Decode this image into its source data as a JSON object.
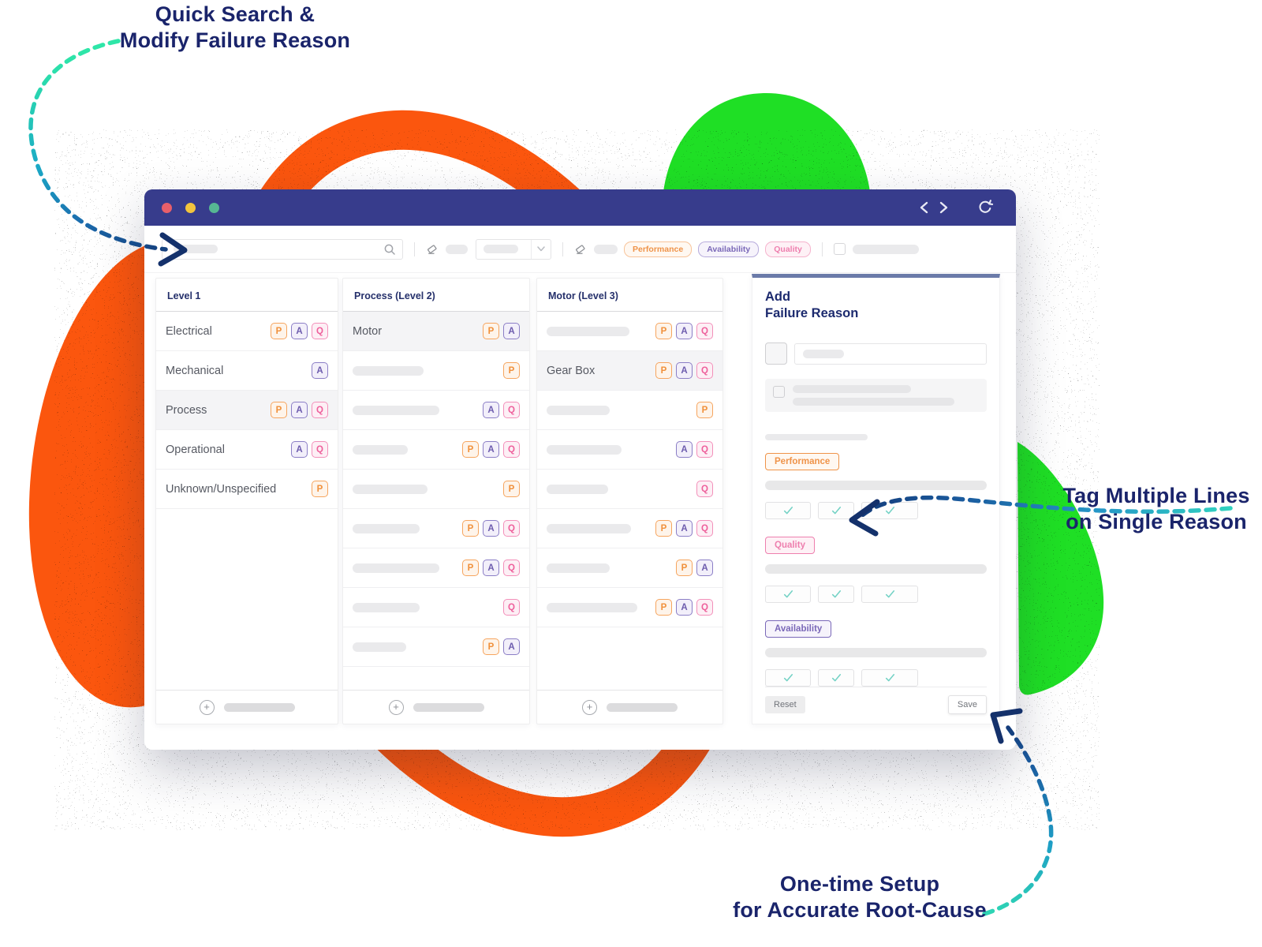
{
  "annotations": {
    "top_left": {
      "line1": "Quick Search &",
      "line2": "Modify Failure Reason"
    },
    "right": {
      "line1": "Tag Multiple Lines",
      "line2": "on Single Reason"
    },
    "bottom": {
      "line1": "One-time Setup",
      "line2": "for Accurate Root-Cause"
    }
  },
  "window": {
    "titlebar": {
      "traffic_lights": [
        "close",
        "minimize",
        "zoom"
      ],
      "nav_icons": [
        "back",
        "forward",
        "refresh"
      ]
    },
    "toolbar": {
      "search": {
        "placeholder": ""
      },
      "filter_tags": [
        {
          "label": "Performance",
          "color": "orange"
        },
        {
          "label": "Availability",
          "color": "purple"
        },
        {
          "label": "Quality",
          "color": "pink"
        }
      ]
    },
    "columns": [
      {
        "header": "Level 1",
        "rows": [
          {
            "label": "Electrical",
            "badges": [
              "P",
              "A",
              "Q"
            ]
          },
          {
            "label": "Mechanical",
            "badges": [
              "A"
            ]
          },
          {
            "label": "Process",
            "badges": [
              "P",
              "A",
              "Q"
            ],
            "selected": true
          },
          {
            "label": "Operational",
            "badges": [
              "A",
              "Q"
            ]
          },
          {
            "label": "Unknown/Unspecified",
            "badges": [
              "P"
            ]
          }
        ]
      },
      {
        "header": "Process (Level 2)",
        "rows": [
          {
            "label": "Motor",
            "badges": [
              "P",
              "A"
            ],
            "selected": true
          },
          {
            "placeholder": true,
            "badges": [
              "P"
            ]
          },
          {
            "placeholder": true,
            "badges": [
              "A",
              "Q"
            ]
          },
          {
            "placeholder": true,
            "badges": [
              "P",
              "A",
              "Q"
            ]
          },
          {
            "placeholder": true,
            "badges": [
              "P"
            ]
          },
          {
            "placeholder": true,
            "badges": [
              "P",
              "A",
              "Q"
            ]
          },
          {
            "placeholder": true,
            "badges": [
              "P",
              "A",
              "Q"
            ]
          },
          {
            "placeholder": true,
            "badges": [
              "Q"
            ]
          },
          {
            "placeholder": true,
            "badges": [
              "P",
              "A"
            ]
          }
        ]
      },
      {
        "header": "Motor (Level 3)",
        "rows": [
          {
            "placeholder": true,
            "badges": [
              "P",
              "A",
              "Q"
            ]
          },
          {
            "label": "Gear Box",
            "badges": [
              "P",
              "A",
              "Q"
            ],
            "selected": true
          },
          {
            "placeholder": true,
            "badges": [
              "P"
            ]
          },
          {
            "placeholder": true,
            "badges": [
              "A",
              "Q"
            ]
          },
          {
            "placeholder": true,
            "badges": [
              "Q"
            ]
          },
          {
            "placeholder": true,
            "badges": [
              "P",
              "A",
              "Q"
            ]
          },
          {
            "placeholder": true,
            "badges": [
              "P",
              "A"
            ]
          },
          {
            "placeholder": true,
            "badges": [
              "P",
              "A",
              "Q"
            ]
          }
        ]
      }
    ],
    "panel": {
      "title_line1": "Add",
      "title_line2": "Failure Reason",
      "groups": [
        {
          "label": "Performance",
          "color": "orange",
          "checks": 3
        },
        {
          "label": "Quality",
          "color": "pink",
          "checks": 3
        },
        {
          "label": "Availability",
          "color": "purple",
          "checks": 3
        }
      ],
      "reset_label": "Reset",
      "save_label": "Save"
    }
  },
  "colors": {
    "titlebar": "#373c8c",
    "accent_orange": "#fb560e",
    "accent_green": "#1fdf25",
    "annotation_navy": "#1a246b",
    "arrow_teal": "#2ee6a8",
    "arrow_navy": "#14316b",
    "badge_orange": "#f0903b",
    "badge_purple": "#6d5cae",
    "badge_pink": "#ee5f9b",
    "panel_accent": "#6b7ba9",
    "check_teal": "#74d2c5"
  }
}
